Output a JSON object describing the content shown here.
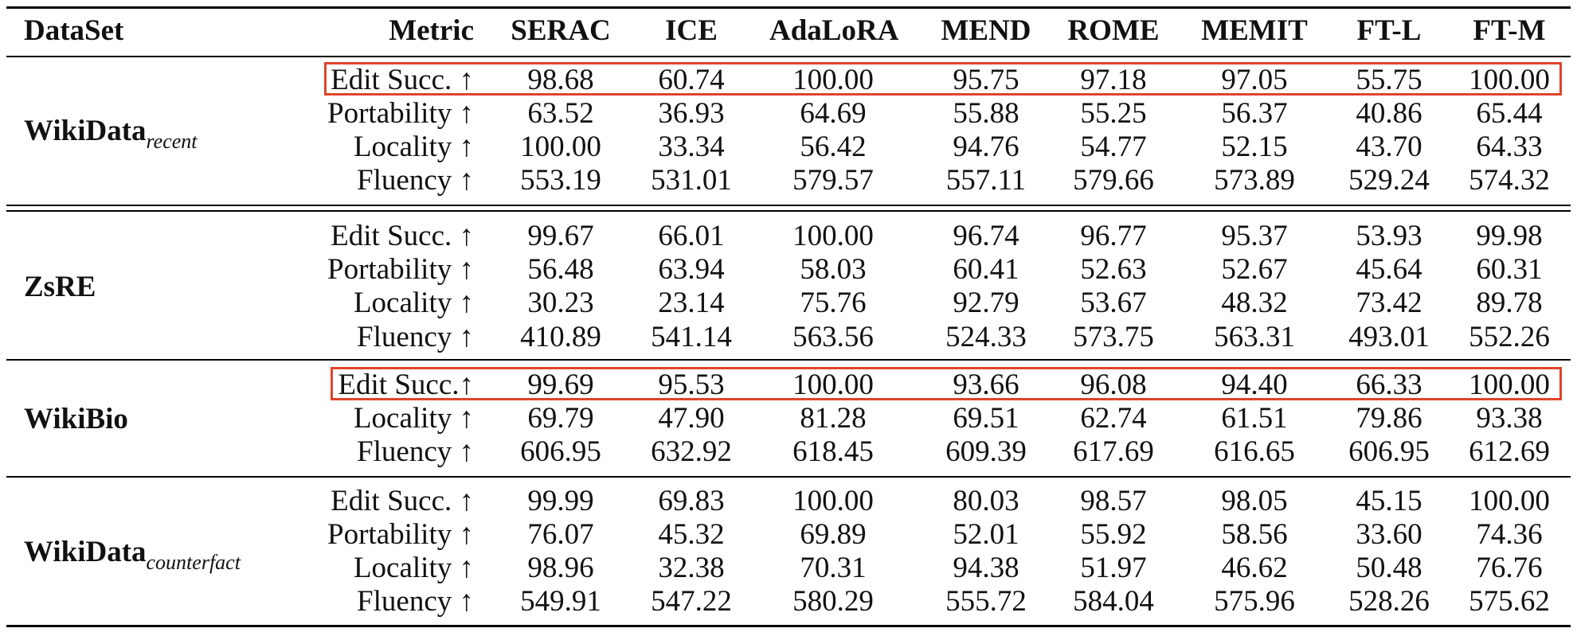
{
  "table": {
    "header": {
      "dataset": "DataSet",
      "metric": "Metric",
      "methods": [
        "SERAC",
        "ICE",
        "AdaLoRA",
        "MEND",
        "ROME",
        "MEMIT",
        "FT-L",
        "FT-M"
      ]
    },
    "groups": [
      {
        "name": "WikiData",
        "subscript": "recent",
        "rows": [
          {
            "metric": "Edit Succ. ↑",
            "values": [
              "98.68",
              "60.74",
              "100.00",
              "95.75",
              "97.18",
              "97.05",
              "55.75",
              "100.00"
            ],
            "highlighted": true
          },
          {
            "metric": "Portability ↑",
            "values": [
              "63.52",
              "36.93",
              "64.69",
              "55.88",
              "55.25",
              "56.37",
              "40.86",
              "65.44"
            ]
          },
          {
            "metric": "Locality ↑",
            "values": [
              "100.00",
              "33.34",
              "56.42",
              "94.76",
              "54.77",
              "52.15",
              "43.70",
              "64.33"
            ]
          },
          {
            "metric": "Fluency ↑",
            "values": [
              "553.19",
              "531.01",
              "579.57",
              "557.11",
              "579.66",
              "573.89",
              "529.24",
              "574.32"
            ]
          }
        ]
      },
      {
        "name": "ZsRE",
        "subscript": "",
        "rows": [
          {
            "metric": "Edit Succ. ↑",
            "values": [
              "99.67",
              "66.01",
              "100.00",
              "96.74",
              "96.77",
              "95.37",
              "53.93",
              "99.98"
            ]
          },
          {
            "metric": "Portability ↑",
            "values": [
              "56.48",
              "63.94",
              "58.03",
              "60.41",
              "52.63",
              "52.67",
              "45.64",
              "60.31"
            ]
          },
          {
            "metric": "Locality ↑",
            "values": [
              "30.23",
              "23.14",
              "75.76",
              "92.79",
              "53.67",
              "48.32",
              "73.42",
              "89.78"
            ]
          },
          {
            "metric": "Fluency ↑",
            "values": [
              "410.89",
              "541.14",
              "563.56",
              "524.33",
              "573.75",
              "563.31",
              "493.01",
              "552.26"
            ]
          }
        ]
      },
      {
        "name": "WikiBio",
        "subscript": "",
        "rows": [
          {
            "metric": "Edit Succ.↑",
            "values": [
              "99.69",
              "95.53",
              "100.00",
              "93.66",
              "96.08",
              "94.40",
              "66.33",
              "100.00"
            ],
            "highlighted": true
          },
          {
            "metric": "Locality ↑",
            "values": [
              "69.79",
              "47.90",
              "81.28",
              "69.51",
              "62.74",
              "61.51",
              "79.86",
              "93.38"
            ]
          },
          {
            "metric": "Fluency ↑",
            "values": [
              "606.95",
              "632.92",
              "618.45",
              "609.39",
              "617.69",
              "616.65",
              "606.95",
              "612.69"
            ]
          }
        ]
      },
      {
        "name": "WikiData",
        "subscript": "counterfact",
        "rows": [
          {
            "metric": "Edit Succ. ↑",
            "values": [
              "99.99",
              "69.83",
              "100.00",
              "80.03",
              "98.57",
              "98.05",
              "45.15",
              "100.00"
            ]
          },
          {
            "metric": "Portability ↑",
            "values": [
              "76.07",
              "45.32",
              "69.89",
              "52.01",
              "55.92",
              "58.56",
              "33.60",
              "74.36"
            ]
          },
          {
            "metric": "Locality ↑",
            "values": [
              "98.96",
              "32.38",
              "70.31",
              "94.38",
              "51.97",
              "46.62",
              "50.48",
              "76.76"
            ]
          },
          {
            "metric": "Fluency ↑",
            "values": [
              "549.91",
              "547.22",
              "580.29",
              "555.72",
              "584.04",
              "575.96",
              "528.26",
              "575.62"
            ]
          }
        ]
      }
    ],
    "highlight_color": "#e0442b"
  }
}
